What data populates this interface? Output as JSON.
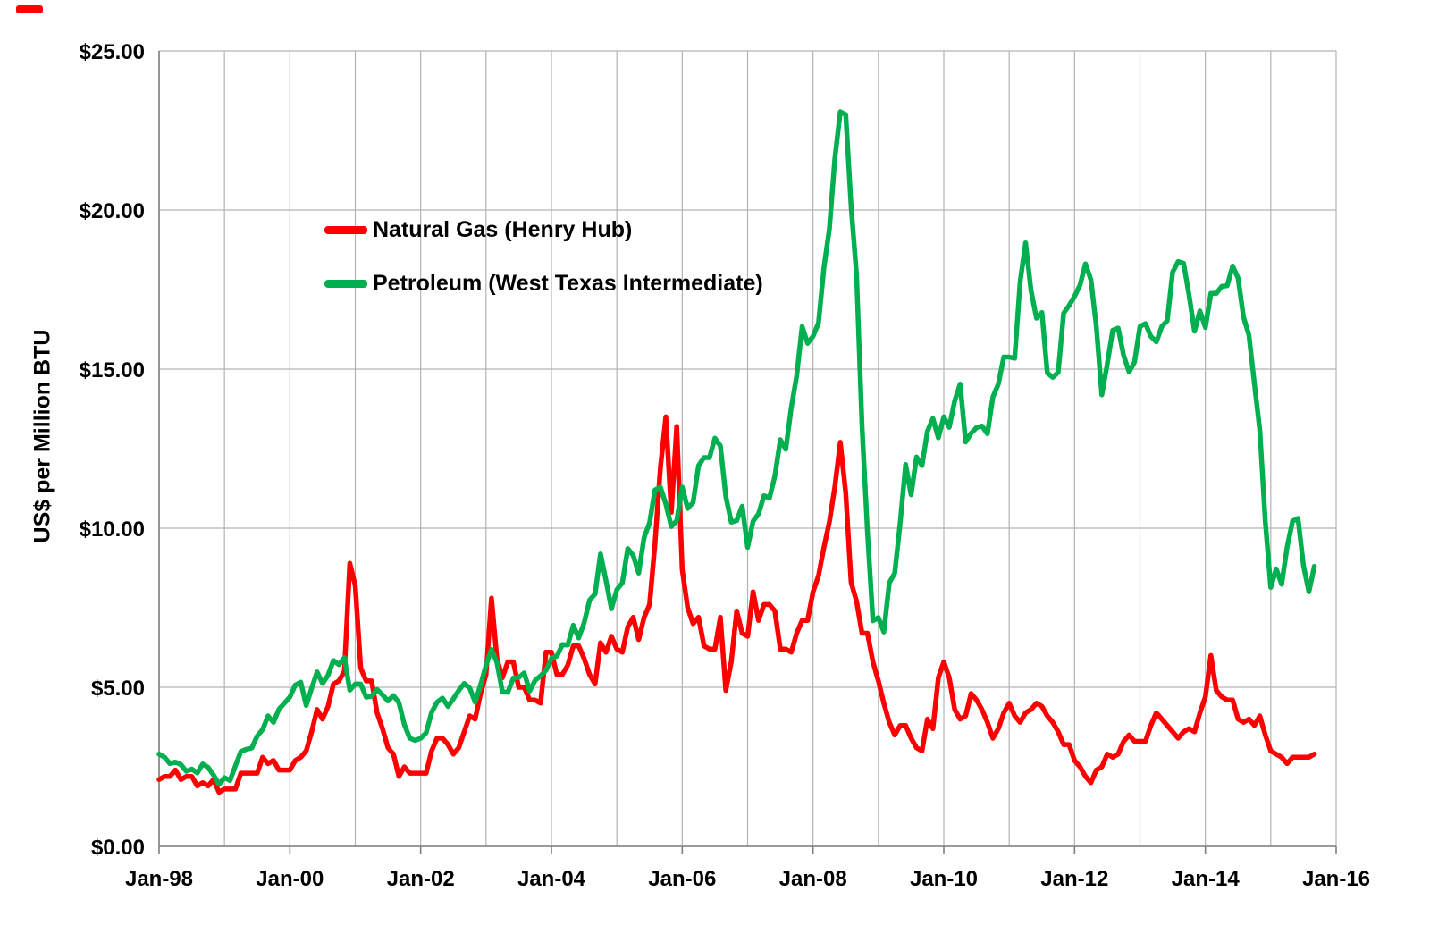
{
  "chart_data": {
    "type": "line",
    "title": "",
    "xlabel": "",
    "ylabel": "US$ per Million BTU",
    "ylim": [
      0,
      25
    ],
    "y_tick_step": 5,
    "y_tick_labels": [
      "$0.00",
      "$5.00",
      "$10.00",
      "$15.00",
      "$20.00",
      "$25.00"
    ],
    "x_tick_labels": [
      "Jan-98",
      "Jan-00",
      "Jan-02",
      "Jan-04",
      "Jan-06",
      "Jan-08",
      "Jan-10",
      "Jan-12",
      "Jan-14",
      "Jan-16"
    ],
    "x_start": "1998-01",
    "x_interval": "monthly",
    "x_end": "2015-09",
    "x_axis_span_months": 216,
    "grid": {
      "vertical": "yearly",
      "horizontal_step": 5,
      "visible": true
    },
    "legend_position": "upper-left-inside",
    "style": {
      "grid_color": "#b3b3b3",
      "axis_color": "#7f7f7f",
      "background": "#ffffff",
      "line_width": 5.5
    },
    "series": [
      {
        "name": "Natural Gas (Henry Hub)",
        "color": "#fe0000",
        "values": [
          2.1,
          2.2,
          2.2,
          2.4,
          2.1,
          2.2,
          2.2,
          1.9,
          2.0,
          1.9,
          2.1,
          1.7,
          1.8,
          1.8,
          1.8,
          2.3,
          2.3,
          2.3,
          2.3,
          2.8,
          2.6,
          2.7,
          2.4,
          2.4,
          2.4,
          2.7,
          2.8,
          3.0,
          3.6,
          4.3,
          4.0,
          4.4,
          5.1,
          5.2,
          5.5,
          8.9,
          8.2,
          5.6,
          5.2,
          5.2,
          4.2,
          3.7,
          3.1,
          2.9,
          2.2,
          2.5,
          2.3,
          2.3,
          2.3,
          2.3,
          3.0,
          3.4,
          3.4,
          3.2,
          2.9,
          3.1,
          3.6,
          4.1,
          4.0,
          4.8,
          5.4,
          7.8,
          5.9,
          5.3,
          5.8,
          5.8,
          5.0,
          5.0,
          4.6,
          4.6,
          4.5,
          6.1,
          6.1,
          5.4,
          5.4,
          5.7,
          6.3,
          6.3,
          5.9,
          5.4,
          5.1,
          6.4,
          6.1,
          6.6,
          6.2,
          6.1,
          6.9,
          7.2,
          6.5,
          7.2,
          7.6,
          9.5,
          11.9,
          13.5,
          10.5,
          13.2,
          8.7,
          7.5,
          7.0,
          7.2,
          6.3,
          6.2,
          6.2,
          7.2,
          4.9,
          5.8,
          7.4,
          6.7,
          6.6,
          8.0,
          7.1,
          7.6,
          7.6,
          7.4,
          6.2,
          6.2,
          6.1,
          6.7,
          7.1,
          7.1,
          8.0,
          8.5,
          9.4,
          10.2,
          11.3,
          12.7,
          11.1,
          8.3,
          7.7,
          6.7,
          6.7,
          5.8,
          5.2,
          4.5,
          3.9,
          3.5,
          3.8,
          3.8,
          3.4,
          3.1,
          3.0,
          4.0,
          3.7,
          5.3,
          5.8,
          5.3,
          4.3,
          4.0,
          4.1,
          4.8,
          4.6,
          4.3,
          3.9,
          3.4,
          3.7,
          4.2,
          4.5,
          4.1,
          3.9,
          4.2,
          4.3,
          4.5,
          4.4,
          4.1,
          3.9,
          3.6,
          3.2,
          3.2,
          2.7,
          2.5,
          2.2,
          2.0,
          2.4,
          2.5,
          2.9,
          2.8,
          2.9,
          3.3,
          3.5,
          3.3,
          3.3,
          3.3,
          3.8,
          4.2,
          4.0,
          3.8,
          3.6,
          3.4,
          3.6,
          3.7,
          3.6,
          4.2,
          4.7,
          6.0,
          4.9,
          4.7,
          4.6,
          4.6,
          4.0,
          3.9,
          4.0,
          3.8,
          4.1,
          3.5,
          3.0,
          2.9,
          2.8,
          2.6,
          2.8,
          2.8,
          2.8,
          2.8,
          2.9
        ]
      },
      {
        "name": "Petroleum (West Texas Intermediate)",
        "color": "#00b050",
        "values": [
          2.9,
          2.8,
          2.6,
          2.65,
          2.57,
          2.36,
          2.43,
          2.31,
          2.59,
          2.48,
          2.24,
          1.95,
          2.16,
          2.07,
          2.53,
          2.98,
          3.05,
          3.09,
          3.47,
          3.67,
          4.1,
          3.9,
          4.31,
          4.5,
          4.69,
          5.07,
          5.16,
          4.43,
          4.97,
          5.48,
          5.12,
          5.38,
          5.84,
          5.71,
          5.93,
          4.91,
          5.1,
          5.1,
          4.69,
          4.72,
          4.93,
          4.76,
          4.57,
          4.74,
          4.52,
          3.83,
          3.4,
          3.33,
          3.4,
          3.57,
          4.21,
          4.53,
          4.66,
          4.4,
          4.64,
          4.9,
          5.12,
          4.98,
          4.53,
          5.07,
          5.69,
          6.19,
          5.78,
          4.86,
          4.84,
          5.29,
          5.31,
          5.45,
          4.88,
          5.22,
          5.36,
          5.53,
          5.91,
          5.98,
          6.34,
          6.33,
          6.95,
          6.55,
          7.03,
          7.74,
          7.93,
          9.19,
          8.36,
          7.47,
          8.07,
          8.28,
          9.36,
          9.14,
          8.59,
          9.71,
          10.17,
          11.2,
          11.29,
          10.76,
          10.05,
          10.24,
          11.29,
          10.62,
          10.81,
          11.97,
          12.22,
          12.22,
          12.83,
          12.59,
          11.0,
          10.19,
          10.24,
          10.69,
          9.4,
          10.22,
          10.45,
          11.02,
          10.95,
          11.64,
          12.78,
          12.48,
          13.78,
          14.79,
          16.34,
          15.81,
          16.03,
          16.45,
          18.19,
          19.41,
          21.62,
          23.09,
          23.0,
          20.12,
          17.95,
          13.21,
          9.88,
          7.09,
          7.19,
          6.74,
          8.28,
          8.59,
          10.17,
          12.0,
          11.05,
          12.24,
          11.97,
          13.05,
          13.45,
          12.84,
          13.5,
          13.17,
          14.0,
          14.53,
          12.71,
          12.98,
          13.16,
          13.21,
          12.97,
          14.12,
          14.53,
          15.38,
          15.38,
          15.34,
          17.74,
          18.97,
          17.47,
          16.6,
          16.78,
          14.88,
          14.74,
          14.9,
          16.76,
          17.0,
          17.29,
          17.64,
          18.31,
          17.81,
          16.33,
          14.19,
          15.16,
          16.22,
          16.29,
          15.43,
          14.91,
          15.22,
          16.34,
          16.43,
          16.03,
          15.86,
          16.34,
          16.52,
          18.05,
          18.38,
          18.33,
          17.33,
          16.19,
          16.83,
          16.31,
          17.38,
          17.38,
          17.6,
          17.62,
          18.24,
          17.86,
          16.64,
          16.07,
          14.55,
          13.07,
          10.22,
          8.14,
          8.72,
          8.24,
          9.4,
          10.22,
          10.31,
          8.83,
          8.0,
          8.8
        ]
      }
    ]
  }
}
